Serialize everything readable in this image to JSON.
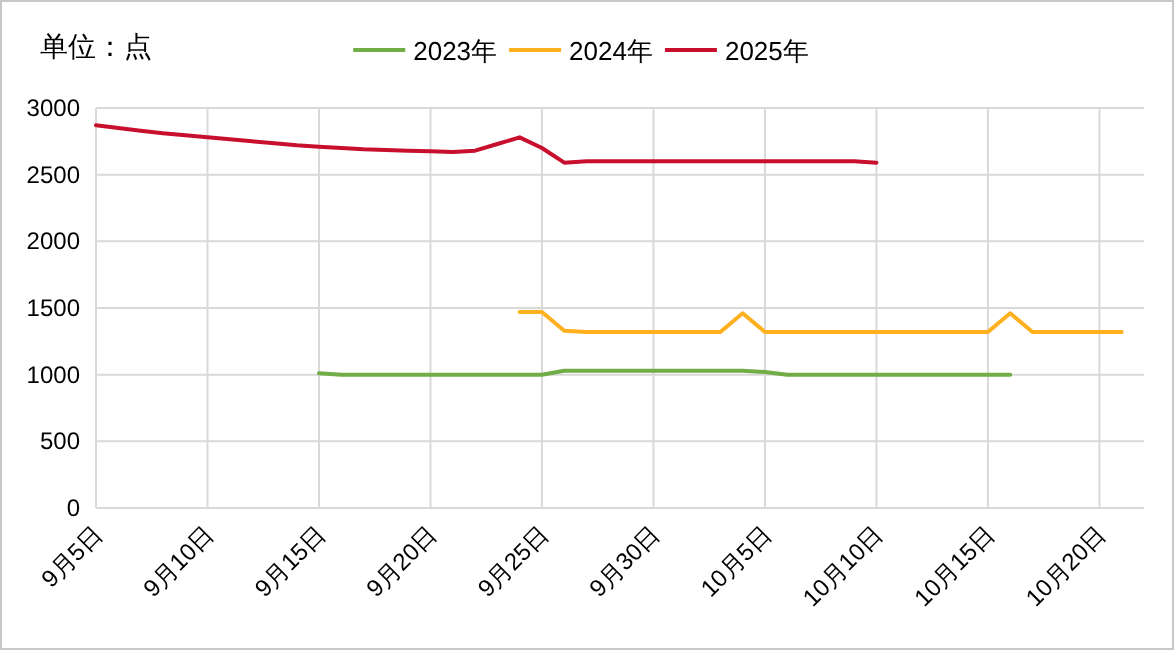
{
  "chart_data": {
    "type": "line",
    "annotations": [
      "单位：点"
    ],
    "categories": [
      "9月5日",
      null,
      null,
      null,
      null,
      "9月10日",
      null,
      null,
      null,
      null,
      "9月15日",
      null,
      null,
      null,
      null,
      "9月20日",
      null,
      null,
      null,
      null,
      "9月25日",
      null,
      null,
      null,
      null,
      "9月30日",
      null,
      null,
      null,
      null,
      "10月5日",
      null,
      null,
      null,
      null,
      "10月10日",
      null,
      null,
      null,
      null,
      "10月15日",
      null,
      null,
      null,
      null,
      "10月20日",
      null,
      null
    ],
    "series": [
      {
        "name": "2023年",
        "color": "#70ad47",
        "values": [
          null,
          null,
          null,
          null,
          null,
          null,
          null,
          null,
          null,
          null,
          1010,
          1000,
          1000,
          1000,
          1000,
          1000,
          1000,
          1000,
          1000,
          1000,
          1000,
          1030,
          1030,
          1030,
          1030,
          1030,
          1030,
          1030,
          1030,
          1030,
          1020,
          1000,
          1000,
          1000,
          1000,
          1000,
          1000,
          1000,
          1000,
          1000,
          1000,
          1000,
          null,
          null,
          null,
          null,
          null,
          null
        ]
      },
      {
        "name": "2024年",
        "color": "#ffb01f",
        "values": [
          null,
          null,
          null,
          null,
          null,
          null,
          null,
          null,
          null,
          null,
          null,
          null,
          null,
          null,
          null,
          null,
          null,
          null,
          null,
          1470,
          1470,
          1330,
          1320,
          1320,
          1320,
          1320,
          1320,
          1320,
          1320,
          1460,
          1320,
          1320,
          1320,
          1320,
          1320,
          1320,
          1320,
          1320,
          1320,
          1320,
          1320,
          1460,
          1320,
          1320,
          1320,
          1320,
          1320,
          null
        ]
      },
      {
        "name": "2025年",
        "color": "#c8102e",
        "values": [
          2870,
          2850,
          2830,
          2810,
          2795,
          2780,
          2765,
          2750,
          2735,
          2720,
          2710,
          2700,
          2690,
          2685,
          2680,
          2675,
          2670,
          2680,
          2730,
          2780,
          2700,
          2590,
          2600,
          2600,
          2600,
          2600,
          2600,
          2600,
          2600,
          2600,
          2600,
          2600,
          2600,
          2600,
          2600,
          2590,
          null,
          null,
          null,
          null,
          null,
          null,
          null,
          null,
          null,
          null,
          null,
          null
        ]
      }
    ],
    "ylim": [
      0,
      3000
    ],
    "yticks": [
      0,
      500,
      1000,
      1500,
      2000,
      2500,
      3000
    ],
    "grid": true,
    "legend": "top",
    "marker": "none",
    "line_style": "solid"
  }
}
